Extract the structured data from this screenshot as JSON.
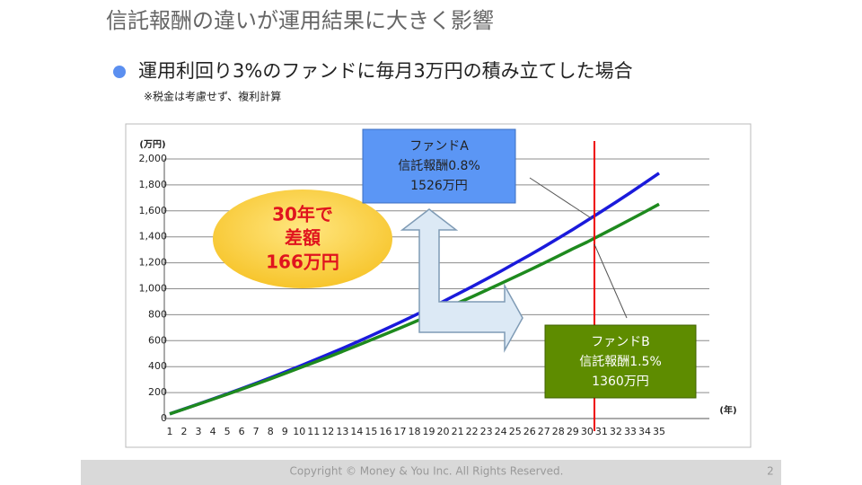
{
  "slide_title": "信託報酬の違いが運用結果に大きく影響",
  "bullet": "運用利回り3%のファンドに毎月3万円の積み立てした場合",
  "note": "※税金は考慮せず、複利計算",
  "chart_data": {
    "type": "line",
    "ylabel": "(万円)",
    "xlabel": "(年)",
    "categories": [
      "1",
      "2",
      "3",
      "4",
      "5",
      "6",
      "7",
      "8",
      "9",
      "10",
      "11",
      "12",
      "13",
      "14",
      "15",
      "16",
      "17",
      "18",
      "19",
      "20",
      "21",
      "22",
      "23",
      "24",
      "25",
      "26",
      "27",
      "28",
      "29",
      "30",
      "31",
      "32",
      "33",
      "34",
      "35"
    ],
    "series": [
      {
        "name": "ファンドA",
        "color": "#1a1adb",
        "values": [
          36,
          74,
          112,
          151,
          190,
          231,
          272,
          315,
          358,
          402,
          448,
          494,
          541,
          589,
          639,
          689,
          741,
          794,
          847,
          902,
          959,
          1016,
          1075,
          1135,
          1197,
          1259,
          1323,
          1389,
          1456,
          1526,
          1596,
          1667,
          1740,
          1815,
          1891
        ]
      },
      {
        "name": "ファンドB",
        "color": "#1e8a1e",
        "values": [
          36,
          73,
          111,
          149,
          187,
          226,
          266,
          306,
          347,
          389,
          431,
          473,
          517,
          561,
          606,
          651,
          697,
          744,
          791,
          840,
          889,
          938,
          989,
          1040,
          1092,
          1144,
          1198,
          1252,
          1307,
          1360,
          1417,
          1475,
          1533,
          1592,
          1652
        ]
      }
    ],
    "ylim": [
      0,
      2000
    ],
    "yticks": [
      0,
      200,
      400,
      600,
      800,
      {
        "value": 1000,
        "label": "1,000"
      },
      {
        "value": 1200,
        "label": "1,200"
      },
      {
        "value": 1400,
        "label": "1,400"
      },
      {
        "value": 1600,
        "label": "1,600"
      },
      {
        "value": 1800,
        "label": "1,800"
      },
      {
        "value": 2000,
        "label": "2,000"
      }
    ],
    "grid": true,
    "annotations": [
      {
        "lines": [
          "信託報酬0.8%",
          "1526万円"
        ]
      },
      {
        "lines": [
          "信託報酬1.5%",
          "1360万円"
        ]
      },
      {
        "lines": [
          "30年で",
          "差額",
          "166万円"
        ]
      }
    ]
  },
  "footer": {
    "copyright": "Copyright © Money & You Inc. All Rights Reserved.",
    "page": "2"
  }
}
